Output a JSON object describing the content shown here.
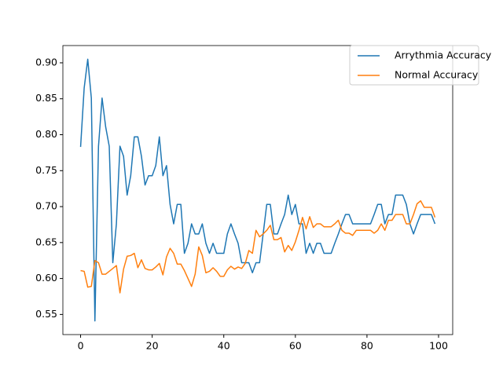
{
  "chart_data": {
    "type": "line",
    "x": [
      0,
      1,
      2,
      3,
      4,
      5,
      6,
      7,
      8,
      9,
      10,
      11,
      12,
      13,
      14,
      15,
      16,
      17,
      18,
      19,
      20,
      21,
      22,
      23,
      24,
      25,
      26,
      27,
      28,
      29,
      30,
      31,
      32,
      33,
      34,
      35,
      36,
      37,
      38,
      39,
      40,
      41,
      42,
      43,
      44,
      45,
      46,
      47,
      48,
      49,
      50,
      51,
      52,
      53,
      54,
      55,
      56,
      57,
      58,
      59,
      60,
      61,
      62,
      63,
      64,
      65,
      66,
      67,
      68,
      69,
      70,
      71,
      72,
      73,
      74,
      75,
      76,
      77,
      78,
      79,
      80,
      81,
      82,
      83,
      84,
      85,
      86,
      87,
      88,
      89,
      90,
      91,
      92,
      93,
      94,
      95,
      96,
      97,
      98,
      99
    ],
    "series": [
      {
        "name": "Arrythmia Accuracy",
        "color": "#1f77b4",
        "values": [
          0.783,
          0.865,
          0.905,
          0.851,
          0.541,
          0.784,
          0.851,
          0.811,
          0.784,
          0.622,
          0.676,
          0.784,
          0.77,
          0.716,
          0.743,
          0.797,
          0.797,
          0.77,
          0.73,
          0.743,
          0.743,
          0.757,
          0.797,
          0.743,
          0.757,
          0.703,
          0.676,
          0.703,
          0.703,
          0.635,
          0.649,
          0.676,
          0.662,
          0.662,
          0.676,
          0.649,
          0.635,
          0.649,
          0.635,
          0.635,
          0.635,
          0.662,
          0.676,
          0.662,
          0.649,
          0.622,
          0.622,
          0.622,
          0.608,
          0.622,
          0.622,
          0.662,
          0.703,
          0.703,
          0.662,
          0.662,
          0.676,
          0.689,
          0.716,
          0.689,
          0.703,
          0.676,
          0.676,
          0.635,
          0.649,
          0.635,
          0.649,
          0.649,
          0.635,
          0.635,
          0.635,
          0.649,
          0.662,
          0.676,
          0.689,
          0.689,
          0.676,
          0.676,
          0.676,
          0.676,
          0.676,
          0.676,
          0.689,
          0.703,
          0.703,
          0.676,
          0.689,
          0.689,
          0.716,
          0.716,
          0.716,
          0.703,
          0.676,
          0.662,
          0.676,
          0.689,
          0.689,
          0.689,
          0.689,
          0.676
        ]
      },
      {
        "name": "Normal Accuracy",
        "color": "#ff7f0e",
        "values": [
          0.611,
          0.61,
          0.588,
          0.589,
          0.625,
          0.622,
          0.606,
          0.606,
          0.61,
          0.614,
          0.618,
          0.58,
          0.613,
          0.631,
          0.632,
          0.635,
          0.615,
          0.626,
          0.614,
          0.612,
          0.612,
          0.616,
          0.621,
          0.605,
          0.63,
          0.642,
          0.635,
          0.62,
          0.62,
          0.611,
          0.6,
          0.589,
          0.606,
          0.644,
          0.632,
          0.608,
          0.61,
          0.615,
          0.61,
          0.603,
          0.603,
          0.612,
          0.617,
          0.613,
          0.616,
          0.614,
          0.621,
          0.639,
          0.635,
          0.667,
          0.658,
          0.662,
          0.667,
          0.674,
          0.654,
          0.654,
          0.657,
          0.637,
          0.646,
          0.639,
          0.651,
          0.667,
          0.685,
          0.669,
          0.686,
          0.671,
          0.676,
          0.676,
          0.672,
          0.672,
          0.672,
          0.676,
          0.681,
          0.667,
          0.663,
          0.663,
          0.66,
          0.667,
          0.667,
          0.667,
          0.667,
          0.667,
          0.663,
          0.667,
          0.676,
          0.667,
          0.681,
          0.681,
          0.689,
          0.689,
          0.689,
          0.676,
          0.676,
          0.689,
          0.704,
          0.708,
          0.699,
          0.699,
          0.699,
          0.685
        ]
      }
    ],
    "xlim": [
      -4.95,
      103.95
    ],
    "ylim": [
      0.522,
      0.924
    ],
    "xticks": [
      0,
      20,
      40,
      60,
      80,
      100
    ],
    "yticks": [
      0.55,
      {
        "value": 0.6,
        "label": "0.60"
      },
      0.65,
      {
        "value": 0.7,
        "label": "0.70"
      },
      0.75,
      {
        "value": 0.8,
        "label": "0.80"
      },
      0.85,
      {
        "value": 0.9,
        "label": "0.90"
      }
    ],
    "legend": "upper right",
    "grid": false
  }
}
